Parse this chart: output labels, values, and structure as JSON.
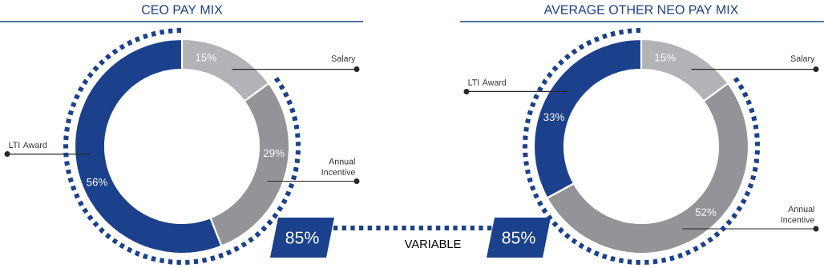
{
  "chart_data": [
    {
      "type": "donut",
      "title": "CEO PAY MIX",
      "categories": [
        "Salary",
        "Annual Incentive",
        "LTI Award"
      ],
      "values": [
        15,
        29,
        56
      ],
      "value_labels": [
        "15%",
        "29%",
        "56%"
      ],
      "colors": [
        "#b1b3b6",
        "#929497",
        "#1c418c"
      ],
      "annotations": [
        "85%",
        "VARIABLE"
      ]
    },
    {
      "type": "donut",
      "title": "AVERAGE OTHER NEO PAY MIX",
      "categories": [
        "Salary",
        "Annual Incentive",
        "LTI Award"
      ],
      "values": [
        15,
        52,
        33
      ],
      "value_labels": [
        "15%",
        "52%",
        "33%"
      ],
      "colors": [
        "#b1b3b6",
        "#929497",
        "#1c418c"
      ],
      "annotations": [
        "85%"
      ]
    }
  ]
}
